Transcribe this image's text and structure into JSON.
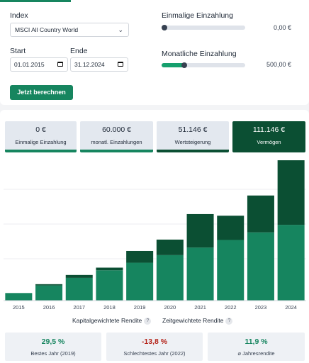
{
  "form": {
    "index_label": "Index",
    "index_value": "MSCI All Country World",
    "start_label": "Start",
    "start_value": "01.01.2015",
    "end_label": "Ende",
    "end_value": "31.12.2024",
    "calculate_label": "Jetzt berechnen",
    "one_time_label": "Einmalige Einzahlung",
    "one_time_value": "0,00 €",
    "one_time_slider_fraction": 0.0,
    "monthly_label": "Monatliche Einzahlung",
    "monthly_value": "500,00 €",
    "monthly_slider_fraction": 0.27
  },
  "tiles": [
    {
      "value": "0 €",
      "label": "Einmalige Einzahlung",
      "bar_color": "#16855f"
    },
    {
      "value": "60.000 €",
      "label": "monatl. Einzahlungen",
      "bar_color": "#16855f"
    },
    {
      "value": "51.146 €",
      "label": "Wertsteigerung",
      "bar_color": "#0b4f33"
    },
    {
      "value": "111.146 €",
      "label": "Vermögen",
      "bar_color": "#0b4f33"
    }
  ],
  "chart_data": {
    "type": "bar",
    "stacked": true,
    "categories": [
      "2015",
      "2016",
      "2017",
      "2018",
      "2019",
      "2020",
      "2021",
      "2022",
      "2023",
      "2024"
    ],
    "series": [
      {
        "color": "#16855f",
        "values": [
          6000,
          12000,
          18000,
          24000,
          30000,
          36000,
          42000,
          48000,
          54000,
          60000
        ]
      },
      {
        "color": "#0b4f33",
        "values": [
          0,
          1000,
          2300,
          2100,
          9300,
          12300,
          26500,
          19200,
          29200,
          51100
        ]
      }
    ],
    "ylim": [
      0,
      120000
    ],
    "grid": true
  },
  "toggles": {
    "capital_weighted": "Kapitalgewichtete Rendite",
    "time_weighted": "Zeitgewichtete Rendite",
    "help": "?"
  },
  "stats": [
    {
      "value": "29,5 %",
      "label": "Bestes Jahr (2019)",
      "color": "#16855f"
    },
    {
      "value": "-13,8 %",
      "label": "Schlechtestes Jahr (2022)",
      "color": "#b42318"
    },
    {
      "value": "11,9 %",
      "label": "⌀ Jahresrendite",
      "color": "#16855f"
    }
  ]
}
